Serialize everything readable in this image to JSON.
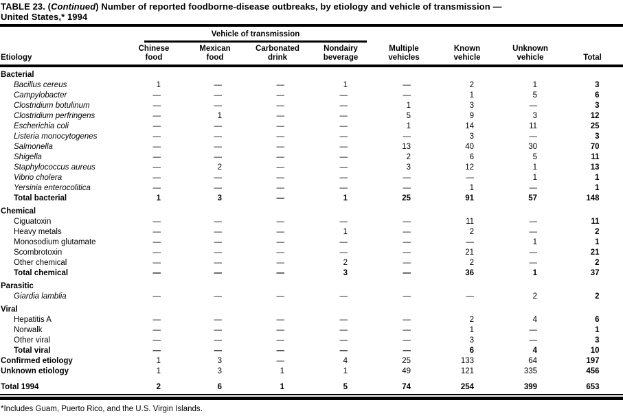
{
  "title": {
    "part1": "TABLE 23. (",
    "continued": "Continued",
    "part2": ") Number of reported foodborne-disease outbreaks, by etiology and vehicle of transmission —",
    "line2": "United States,* 1994"
  },
  "header": {
    "spanner": "Vehicle of transmission",
    "etiology": "Etiology",
    "columns": [
      {
        "l1": "Chinese",
        "l2": "food"
      },
      {
        "l1": "Mexican",
        "l2": "food"
      },
      {
        "l1": "Carbonated",
        "l2": "drink"
      },
      {
        "l1": "Nondairy",
        "l2": "beverage"
      },
      {
        "l1": "Multiple",
        "l2": "vehicles"
      },
      {
        "l1": "Known",
        "l2": "vehicle"
      },
      {
        "l1": "Unknown",
        "l2": "vehicle"
      },
      {
        "l1": "",
        "l2": "Total"
      }
    ]
  },
  "sections": [
    {
      "name": "Bacterial",
      "rows": [
        {
          "label": "Bacillus cereus",
          "italic": true,
          "values": [
            "1",
            "—",
            "—",
            "1",
            "—",
            "2",
            "1",
            "3"
          ]
        },
        {
          "label": "Campylobacter",
          "italic": true,
          "values": [
            "—",
            "—",
            "—",
            "—",
            "—",
            "1",
            "5",
            "6"
          ]
        },
        {
          "label": "Clostridium botulinum",
          "italic": true,
          "values": [
            "—",
            "—",
            "—",
            "—",
            "1",
            "3",
            "—",
            "3"
          ]
        },
        {
          "label": "Clostridium perfringens",
          "italic": true,
          "values": [
            "—",
            "1",
            "—",
            "—",
            "5",
            "9",
            "3",
            "12"
          ]
        },
        {
          "label": "Escherichia coli",
          "italic": true,
          "values": [
            "—",
            "—",
            "—",
            "—",
            "1",
            "14",
            "11",
            "25"
          ]
        },
        {
          "label": "Listeria monocytogenes",
          "italic": true,
          "values": [
            "—",
            "—",
            "—",
            "—",
            "—",
            "3",
            "—",
            "3"
          ]
        },
        {
          "label": "Salmonella",
          "italic": true,
          "values": [
            "—",
            "—",
            "—",
            "—",
            "13",
            "40",
            "30",
            "70"
          ]
        },
        {
          "label": "Shigella",
          "italic": true,
          "values": [
            "—",
            "—",
            "—",
            "—",
            "2",
            "6",
            "5",
            "11"
          ]
        },
        {
          "label": "Staphylococcus aureus",
          "italic": true,
          "values": [
            "—",
            "2",
            "—",
            "—",
            "3",
            "12",
            "1",
            "13"
          ]
        },
        {
          "label": "Vibrio cholera",
          "italic": true,
          "values": [
            "—",
            "—",
            "—",
            "—",
            "—",
            "—",
            "1",
            "1"
          ]
        },
        {
          "label": "Yersinia enterocolitica",
          "italic": true,
          "values": [
            "—",
            "—",
            "—",
            "—",
            "—",
            "1",
            "—",
            "1"
          ]
        },
        {
          "label": "Total bacterial",
          "style": "total",
          "values": [
            "1",
            "3",
            "—",
            "1",
            "25",
            "91",
            "57",
            "148"
          ]
        }
      ]
    },
    {
      "name": "Chemical",
      "rows": [
        {
          "label": "Ciguatoxin",
          "italic": false,
          "values": [
            "—",
            "—",
            "—",
            "—",
            "—",
            "11",
            "—",
            "11"
          ]
        },
        {
          "label": "Heavy metals",
          "italic": false,
          "values": [
            "—",
            "—",
            "—",
            "1",
            "—",
            "2",
            "—",
            "2"
          ]
        },
        {
          "label": "Monosodium glutamate",
          "italic": false,
          "values": [
            "—",
            "—",
            "—",
            "—",
            "—",
            "—",
            "1",
            "1"
          ]
        },
        {
          "label": "Scombrotoxin",
          "italic": false,
          "values": [
            "—",
            "—",
            "—",
            "—",
            "—",
            "21",
            "—",
            "21"
          ]
        },
        {
          "label": "Other chemical",
          "italic": false,
          "values": [
            "—",
            "—",
            "—",
            "2",
            "—",
            "2",
            "—",
            "2"
          ]
        },
        {
          "label": "Total chemical",
          "style": "total",
          "values": [
            "—",
            "—",
            "—",
            "3",
            "—",
            "36",
            "1",
            "37"
          ]
        }
      ]
    },
    {
      "name": "Parasitic",
      "rows": [
        {
          "label": "Giardia lamblia",
          "italic": true,
          "values": [
            "—",
            "—",
            "—",
            "—",
            "—",
            "—",
            "2",
            "2"
          ]
        }
      ]
    },
    {
      "name": "Viral",
      "rows": [
        {
          "label": "Hepatitis A",
          "italic": false,
          "values": [
            "—",
            "—",
            "—",
            "—",
            "—",
            "2",
            "4",
            "6"
          ]
        },
        {
          "label": "Norwalk",
          "italic": false,
          "values": [
            "—",
            "—",
            "—",
            "—",
            "—",
            "1",
            "—",
            "1"
          ]
        },
        {
          "label": "Other viral",
          "italic": false,
          "values": [
            "—",
            "—",
            "—",
            "—",
            "—",
            "3",
            "—",
            "3"
          ]
        },
        {
          "label": "Total viral",
          "style": "total",
          "values": [
            "—",
            "—",
            "—",
            "—",
            "—",
            "6",
            "4",
            "10"
          ]
        }
      ]
    }
  ],
  "summary_rows": [
    {
      "label": "Confirmed etiology",
      "values": [
        "1",
        "3",
        "—",
        "4",
        "25",
        "133",
        "64",
        "197"
      ]
    },
    {
      "label": "Unknown etiology",
      "values": [
        "1",
        "3",
        "1",
        "1",
        "49",
        "121",
        "335",
        "456"
      ]
    }
  ],
  "grand_total": {
    "label": "Total 1994",
    "values": [
      "2",
      "6",
      "1",
      "5",
      "74",
      "254",
      "399",
      "653"
    ]
  },
  "footnote": "*Includes Guam, Puerto Rico, and the U.S. Virgin Islands.",
  "colors": {
    "ink": "#000000",
    "paper": "#ffffff"
  }
}
